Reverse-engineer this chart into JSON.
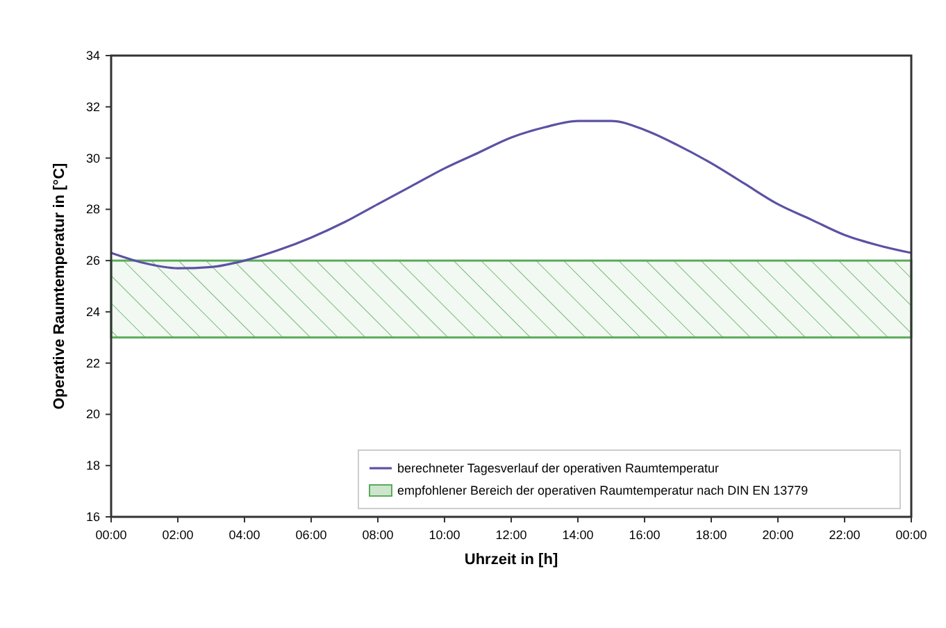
{
  "chart_data": {
    "type": "line",
    "xlabel": "Uhrzeit in [h]",
    "ylabel": "Operative Raumtemperatur in [°C]",
    "x": [
      0,
      1,
      2,
      3,
      4,
      5,
      6,
      7,
      8,
      9,
      10,
      11,
      12,
      13,
      14,
      15,
      16,
      17,
      18,
      19,
      20,
      21,
      22,
      23,
      24
    ],
    "series": [
      {
        "name": "berechneter Tagesverlauf der operativen Raumtemperatur",
        "color": "#5b52a3",
        "values": [
          26.3,
          25.9,
          25.7,
          25.75,
          26.0,
          26.4,
          26.9,
          27.5,
          28.2,
          28.9,
          29.6,
          30.2,
          30.8,
          31.2,
          31.45,
          31.45,
          31.1,
          30.5,
          29.8,
          29.0,
          28.2,
          27.6,
          27.0,
          26.6,
          26.3
        ]
      }
    ],
    "bands": [
      {
        "axis": "y",
        "from": 23,
        "to": 26,
        "label": "empfohlener Bereich der operativen Raumtemperatur nach DIN EN 13779",
        "color": "#5aaa5a"
      }
    ],
    "xlim": [
      0,
      24
    ],
    "xticks": [
      {
        "value": 0,
        "label": "00:00"
      },
      {
        "value": 2,
        "label": "02:00"
      },
      {
        "value": 4,
        "label": "04:00"
      },
      {
        "value": 6,
        "label": "06:00"
      },
      {
        "value": 8,
        "label": "08:00"
      },
      {
        "value": 10,
        "label": "10:00"
      },
      {
        "value": 12,
        "label": "12:00"
      },
      {
        "value": 14,
        "label": "14:00"
      },
      {
        "value": 16,
        "label": "16:00"
      },
      {
        "value": 18,
        "label": "18:00"
      },
      {
        "value": 20,
        "label": "20:00"
      },
      {
        "value": 22,
        "label": "22:00"
      },
      {
        "value": 24,
        "label": "00:00"
      }
    ],
    "ylim": [
      16,
      34
    ],
    "yticks": [
      16,
      18,
      20,
      22,
      24,
      26,
      28,
      30,
      32,
      34
    ],
    "legend": "bottom right",
    "marker": "none",
    "line_style": "solid"
  }
}
